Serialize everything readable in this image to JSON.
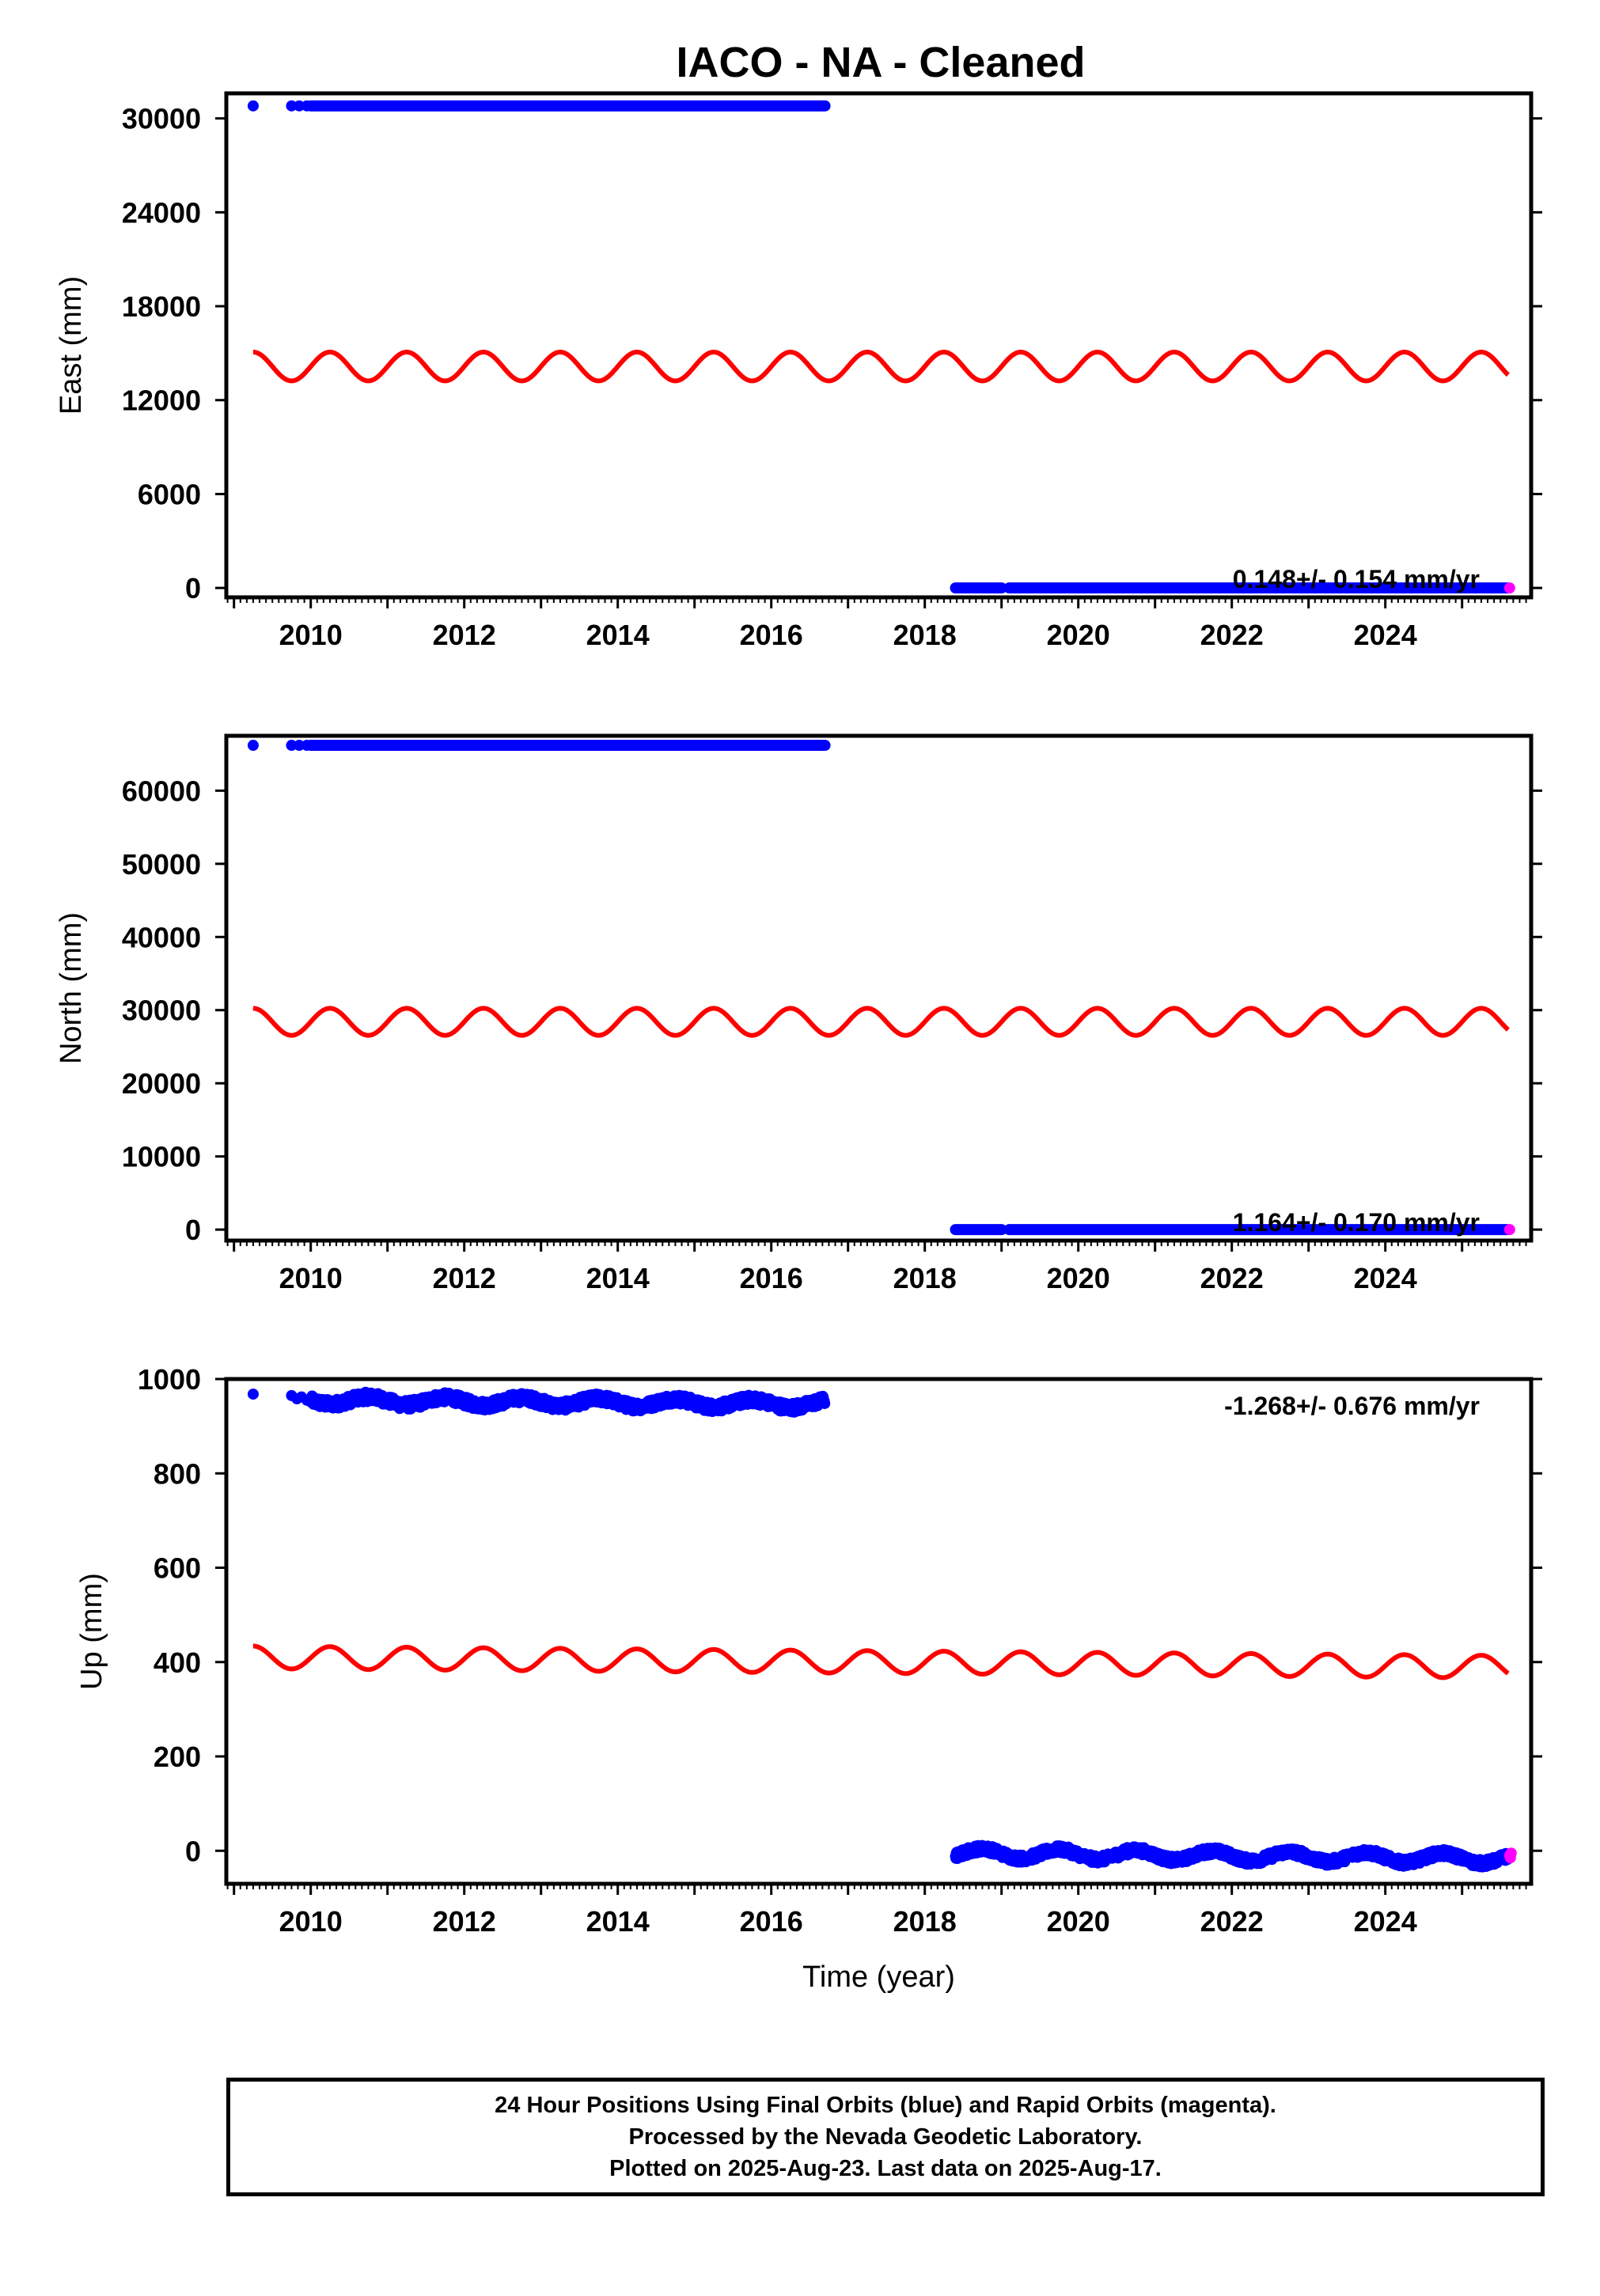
{
  "title": "IACO  - NA - Cleaned",
  "footer": {
    "line1": "24 Hour Positions Using Final Orbits (blue) and Rapid Orbits (magenta).",
    "line2": "Processed by the Nevada Geodetic Laboratory.",
    "line3": "Plotted on 2025-Aug-23. Last data on 2025-Aug-17."
  },
  "colors": {
    "final_orbits": "#0000ff",
    "rapid_orbits": "#ff00ff",
    "model": "#ff0000"
  },
  "chart_data": [
    {
      "type": "scatter",
      "ylabel": "East (mm)",
      "xlabel": "",
      "xlim": [
        2008.9,
        2025.9
      ],
      "ylim": [
        -600,
        31600
      ],
      "yticks": [
        0,
        6000,
        12000,
        18000,
        24000,
        30000
      ],
      "xticks": [
        2010,
        2012,
        2014,
        2016,
        2018,
        2020,
        2022,
        2024
      ],
      "rate": "0.148+/- 0.154 mm/yr",
      "rate_position": "bottom-right",
      "series": [
        {
          "points": [
            [
              2009.25,
              30800
            ],
            [
              2009.75,
              30800
            ],
            [
              2009.85,
              30800
            ],
            [
              2009.95,
              30800
            ]
          ],
          "segments": [
            {
              "x0": 2010.0,
              "x1": 2016.7,
              "y": 30800
            }
          ]
        },
        {
          "segments": [
            {
              "x0": 2018.4,
              "x1": 2019.0,
              "y": 0
            },
            {
              "x0": 2019.1,
              "x1": 2025.6,
              "y": 0
            }
          ]
        },
        {
          "points": [
            [
              2025.62,
              0
            ]
          ]
        },
        {
          "trend_start": 14150,
          "trend_end": 14150,
          "amplitude": 920
        }
      ]
    },
    {
      "type": "scatter",
      "ylabel": "North (mm)",
      "xlabel": "",
      "xlim": [
        2008.9,
        2025.9
      ],
      "ylim": [
        -1500,
        67500
      ],
      "yticks": [
        0,
        10000,
        20000,
        30000,
        40000,
        50000,
        60000
      ],
      "xticks": [
        2010,
        2012,
        2014,
        2016,
        2018,
        2020,
        2022,
        2024
      ],
      "rate": "1.164+/- 0.170 mm/yr",
      "rate_position": "bottom-right",
      "series": [
        {
          "points": [
            [
              2009.25,
              66200
            ],
            [
              2009.75,
              66200
            ],
            [
              2009.85,
              66200
            ],
            [
              2009.95,
              66200
            ]
          ],
          "segments": [
            {
              "x0": 2010.0,
              "x1": 2016.7,
              "y": 66200
            }
          ]
        },
        {
          "segments": [
            {
              "x0": 2018.4,
              "x1": 2019.0,
              "y": 0
            },
            {
              "x0": 2019.1,
              "x1": 2025.6,
              "y": 0
            }
          ]
        },
        {
          "points": [
            [
              2025.62,
              0
            ]
          ]
        },
        {
          "trend_start": 28400,
          "trend_end": 28400,
          "amplitude": 1850
        }
      ]
    },
    {
      "type": "scatter",
      "ylabel": "Up (mm)",
      "xlabel": "Time (year)",
      "xlim": [
        2008.9,
        2025.9
      ],
      "ylim": [
        -70,
        1000
      ],
      "yticks": [
        0,
        200,
        400,
        600,
        800,
        1000
      ],
      "xticks": [
        2010,
        2012,
        2014,
        2016,
        2018,
        2020,
        2022,
        2024
      ],
      "rate": "-1.268+/- 0.676 mm/yr",
      "rate_position": "top-right",
      "series": [
        {
          "points": [
            [
              2009.25,
              968
            ],
            [
              2009.75,
              965
            ],
            [
              2009.82,
              958
            ],
            [
              2009.88,
              962
            ],
            [
              2009.95,
              955
            ]
          ],
          "band": {
            "x0": 2010.0,
            "x1": 2016.7,
            "y_start": 955,
            "y_end": 947,
            "scatter": 10,
            "wave": 8
          }
        },
        {
          "band": {
            "x0": 2018.4,
            "x1": 2025.6,
            "y_start": -5,
            "y_end": -17,
            "scatter": 8,
            "wave": 10
          }
        },
        {
          "points": [
            [
              2025.62,
              -10
            ],
            [
              2025.63,
              -15
            ],
            [
              2025.64,
              -5
            ]
          ]
        },
        {
          "trend_start": 410,
          "trend_end": 390,
          "amplitude": 24
        }
      ]
    }
  ]
}
